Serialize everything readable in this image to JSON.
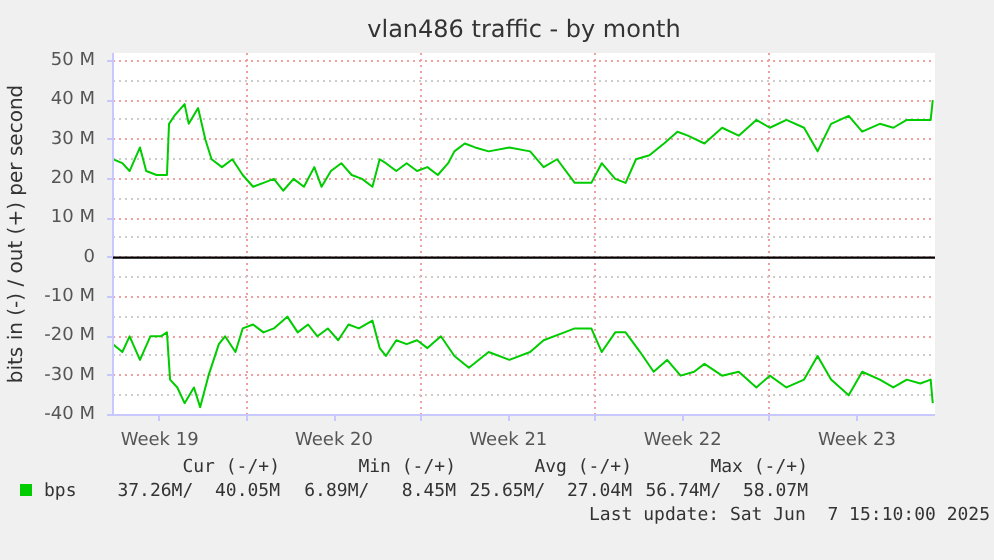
{
  "chart_data": {
    "type": "line",
    "title": "vlan486 traffic - by month",
    "ylabel": "bits in (-) / out (+) per second",
    "xlim": [
      "2025-05-05T15:00",
      "2025-06-07T15:10"
    ],
    "ylim": [
      -40,
      52
    ],
    "xticks": [
      {
        "value": "2025-05-07T12:00",
        "label": "Week 19"
      },
      {
        "value": "2025-05-11",
        "label": null
      },
      {
        "value": "2025-05-14T12:00",
        "label": "Week 20"
      },
      {
        "value": "2025-05-18",
        "label": null
      },
      {
        "value": "2025-05-21T12:00",
        "label": "Week 21"
      },
      {
        "value": "2025-05-25",
        "label": null
      },
      {
        "value": "2025-05-28T12:00",
        "label": "Week 22"
      },
      {
        "value": "2025-06-01",
        "label": null
      },
      {
        "value": "2025-06-04T12:00",
        "label": "Week 23"
      }
    ],
    "yticks": [
      {
        "value": -40,
        "label": "-40 M"
      },
      {
        "value": -30,
        "label": "-30 M"
      },
      {
        "value": -20,
        "label": "-20 M"
      },
      {
        "value": -10,
        "label": "-10 M"
      },
      0,
      {
        "value": 10,
        "label": "10 M"
      },
      {
        "value": 20,
        "label": "20 M"
      },
      {
        "value": 30,
        "label": "30 M"
      },
      {
        "value": 40,
        "label": "40 M"
      },
      {
        "value": 50,
        "label": "50 M"
      }
    ],
    "grid": true,
    "legend": "bottom",
    "line_style": "solid",
    "marker": "none",
    "ref_lines": [
      {
        "axis": "y",
        "value": 0,
        "label": null,
        "color": "#000000"
      }
    ],
    "series": [
      {
        "name": "bps",
        "color": "#00cc00",
        "x": [
          "2025-05-05T15:00",
          "2025-05-06T00:00",
          "2025-05-06T07:00",
          "2025-05-06T17:00",
          "2025-05-06T23:00",
          "2025-05-07T09:00",
          "2025-05-07T19:00",
          "2025-05-07T21:00",
          "2025-05-08T02:00",
          "2025-05-08T12:00",
          "2025-05-08T16:00",
          "2025-05-09T01:00",
          "2025-05-09T08:00",
          "2025-05-09T14:00",
          "2025-05-10T00:00",
          "2025-05-10T10:00",
          "2025-05-10T20:00",
          "2025-05-11T06:00",
          "2025-05-11T16:00",
          "2025-05-12T02:00",
          "2025-05-12T11:00",
          "2025-05-12T21:00",
          "2025-05-13T07:00",
          "2025-05-13T17:00",
          "2025-05-14T00:00",
          "2025-05-14T09:00",
          "2025-05-14T19:00",
          "2025-05-15T05:00",
          "2025-05-15T15:00",
          "2025-05-16T01:00",
          "2025-05-16T08:00",
          "2025-05-16T14:00",
          "2025-05-17T00:00",
          "2025-05-17T10:00",
          "2025-05-17T20:00",
          "2025-05-18T06:00",
          "2025-05-18T16:00",
          "2025-05-19T02:00",
          "2025-05-19T08:00",
          "2025-05-19T18:00",
          "2025-05-20T04:00",
          "2025-05-20T17:00",
          "2025-05-21T13:00",
          "2025-05-22T09:00",
          "2025-05-22T22:00",
          "2025-05-23T11:00",
          "2025-05-24T04:00",
          "2025-05-24T20:00",
          "2025-05-25T06:00",
          "2025-05-25T19:00",
          "2025-05-26T05:00",
          "2025-05-26T15:00",
          "2025-05-27T04:00",
          "2025-05-27T18:00",
          "2025-05-28T07:00",
          "2025-05-28T17:00",
          "2025-05-29T09:00",
          "2025-05-30T02:00",
          "2025-05-30T18:00",
          "2025-05-31T11:00",
          "2025-06-01T00:00",
          "2025-06-01T16:00",
          "2025-06-02T09:00",
          "2025-06-02T22:00",
          "2025-06-03T11:00",
          "2025-06-04T04:00",
          "2025-06-04T17:00",
          "2025-06-05T10:00",
          "2025-06-05T23:00",
          "2025-06-06T12:00",
          "2025-06-07T01:00",
          "2025-06-07T11:00",
          "2025-06-07T13:00"
        ],
        "values": [
          25,
          24,
          22,
          28,
          22,
          21,
          21,
          34,
          36,
          39,
          34,
          38,
          30,
          25,
          23,
          25,
          21,
          18,
          19,
          20,
          17,
          20,
          18,
          23,
          18,
          22,
          24,
          21,
          20,
          18,
          25,
          24,
          22,
          24,
          22,
          23,
          21,
          24,
          27,
          29,
          28,
          27,
          28,
          27,
          23,
          25,
          19,
          19,
          24,
          20,
          19,
          25,
          26,
          29,
          32,
          31,
          29,
          33,
          31,
          35,
          33,
          35,
          33,
          27,
          34,
          36,
          32,
          34,
          33,
          35,
          35,
          35,
          40
        ]
      },
      {
        "color": "#00cc00",
        "x": [
          "2025-05-05T15:00",
          "2025-05-06T00:00",
          "2025-05-06T07:00",
          "2025-05-06T17:00",
          "2025-05-07T03:00",
          "2025-05-07T13:00",
          "2025-05-07T19:00",
          "2025-05-07T22:00",
          "2025-05-08T05:00",
          "2025-05-08T12:00",
          "2025-05-08T21:00",
          "2025-05-09T03:00",
          "2025-05-09T11:00",
          "2025-05-09T21:00",
          "2025-05-10T03:00",
          "2025-05-10T13:00",
          "2025-05-10T20:00",
          "2025-05-11T06:00",
          "2025-05-11T16:00",
          "2025-05-12T02:00",
          "2025-05-12T15:00",
          "2025-05-13T01:00",
          "2025-05-13T11:00",
          "2025-05-13T20:00",
          "2025-05-14T06:00",
          "2025-05-14T16:00",
          "2025-05-15T02:00",
          "2025-05-15T12:00",
          "2025-05-16T01:00",
          "2025-05-16T08:00",
          "2025-05-16T14:00",
          "2025-05-17T00:00",
          "2025-05-17T10:00",
          "2025-05-17T20:00",
          "2025-05-18T06:00",
          "2025-05-18T19:00",
          "2025-05-19T08:00",
          "2025-05-19T22:00",
          "2025-05-20T17:00",
          "2025-05-21T13:00",
          "2025-05-22T09:00",
          "2025-05-22T22:00",
          "2025-05-23T18:00",
          "2025-05-24T04:00",
          "2025-05-24T20:00",
          "2025-05-25T06:00",
          "2025-05-25T19:00",
          "2025-05-26T05:00",
          "2025-05-26T19:00",
          "2025-05-27T08:00",
          "2025-05-27T21:00",
          "2025-05-28T10:00",
          "2025-05-28T23:00",
          "2025-05-29T09:00",
          "2025-05-30T02:00",
          "2025-05-30T18:00",
          "2025-05-31T11:00",
          "2025-06-01T00:00",
          "2025-06-01T16:00",
          "2025-06-02T09:00",
          "2025-06-02T22:00",
          "2025-06-03T11:00",
          "2025-06-04T04:00",
          "2025-06-04T17:00",
          "2025-06-05T10:00",
          "2025-06-05T23:00",
          "2025-06-06T12:00",
          "2025-06-07T01:00",
          "2025-06-07T11:00",
          "2025-06-07T13:00"
        ],
        "values": [
          -22,
          -24,
          -20,
          -26,
          -20,
          -20,
          -19,
          -31,
          -33,
          -37,
          -33,
          -38,
          -30,
          -22,
          -20,
          -24,
          -18,
          -17,
          -19,
          -18,
          -15,
          -19,
          -17,
          -20,
          -18,
          -21,
          -17,
          -18,
          -16,
          -23,
          -25,
          -21,
          -22,
          -21,
          -23,
          -20,
          -25,
          -28,
          -24,
          -26,
          -24,
          -21,
          -19,
          -18,
          -18,
          -24,
          -19,
          -19,
          -24,
          -29,
          -26,
          -30,
          -29,
          -27,
          -30,
          -29,
          -33,
          -30,
          -33,
          -31,
          -25,
          -31,
          -35,
          -29,
          -31,
          -33,
          -31,
          -32,
          -31,
          -37
        ]
      }
    ],
    "annotations": [
      "Cur (-/+)",
      "Min (-/+)",
      "Avg (-/+)",
      "Max (-/+)",
      "37.26M/  40.05M",
      "6.89M/   8.45M",
      "25.65M/  27.04M",
      "56.74M/  58.07M",
      "Last update: Sat Jun  7 15:10:00 2025"
    ]
  }
}
